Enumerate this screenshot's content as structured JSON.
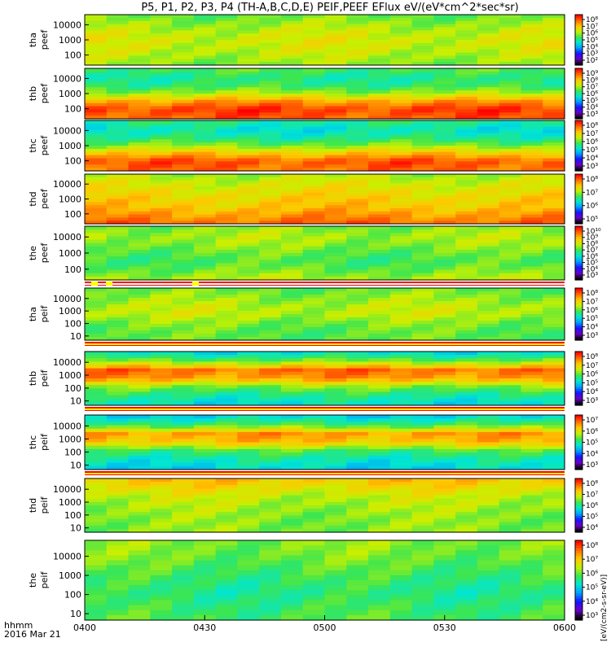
{
  "chart_data": {
    "type": "heatmap",
    "title": "P5, P1, P2, P3, P4 (TH-A,B,C,D,E) PEIF,PEEF EFlux eV/(eV*cm^2*sec*sr)",
    "x_label_left": "hhmm",
    "date_label": "2016 Mar 21",
    "x_ticks": [
      "0400",
      "0430",
      "0500",
      "0530",
      "0600"
    ],
    "colorbar_unit": "[eV/(cm2-s-sr-eV)]",
    "panels": [
      {
        "label": [
          "tha",
          "peef"
        ],
        "yticks": [
          "10000",
          "1000",
          "100"
        ],
        "cbar": [
          "10⁸",
          "10⁷",
          "10⁶",
          "10⁵",
          "10⁴",
          "10³",
          "10²"
        ],
        "profile": [
          5.3,
          5.7,
          6.0,
          6.2,
          6.1,
          5.9,
          5.6
        ],
        "stripe": false
      },
      {
        "label": [
          "thb",
          "peef"
        ],
        "yticks": [
          "10000",
          "1000",
          "100"
        ],
        "cbar": [
          "10⁹",
          "10⁸",
          "10⁷",
          "10⁶",
          "10⁵",
          "10⁴",
          "10³"
        ],
        "profile": [
          5.0,
          4.5,
          4.8,
          5.8,
          7.5,
          8.5,
          8.2
        ],
        "stripe": false
      },
      {
        "label": [
          "thc",
          "peef"
        ],
        "yticks": [
          "10000",
          "1000",
          "100"
        ],
        "cbar": [
          "10⁸",
          "10⁷",
          "10⁶",
          "10⁵",
          "10⁴",
          "10³"
        ],
        "profile": [
          4.5,
          4.0,
          4.5,
          5.5,
          7.0,
          8.3,
          8.0
        ],
        "stripe": false
      },
      {
        "label": [
          "thd",
          "peef"
        ],
        "yticks": [
          "10000",
          "1000",
          "100"
        ],
        "cbar": [
          "10⁸",
          "10⁷",
          "10⁶",
          "10⁵"
        ],
        "profile": [
          5.8,
          6.2,
          6.5,
          6.8,
          7.0,
          7.5,
          8.0
        ],
        "stripe": false
      },
      {
        "label": [
          "the",
          "peef"
        ],
        "yticks": [
          "10000",
          "1000",
          "100"
        ],
        "cbar": [
          "10¹⁰",
          "10⁹",
          "10⁸",
          "10⁷",
          "10⁶",
          "10⁵",
          "10⁴",
          "10³"
        ],
        "profile": [
          5.5,
          5.8,
          5.6,
          5.2,
          5.0,
          5.3,
          5.8
        ],
        "stripe": true
      },
      {
        "label": [
          "tha",
          "peif"
        ],
        "yticks": [
          "10000",
          "1000",
          "100",
          "10"
        ],
        "cbar": [
          "10⁸",
          "10⁷",
          "10⁶",
          "10⁵",
          "10⁴",
          "10³"
        ],
        "profile": [
          5.3,
          5.6,
          5.9,
          6.0,
          5.5,
          5.2,
          5.2
        ],
        "stripe": true
      },
      {
        "label": [
          "thb",
          "peif"
        ],
        "yticks": [
          "10000",
          "1000",
          "100",
          "10"
        ],
        "cbar": [
          "10⁸",
          "10⁷",
          "10⁶",
          "10⁵",
          "10⁴",
          "10³"
        ],
        "profile": [
          4.0,
          5.5,
          8.0,
          7.5,
          5.5,
          4.5,
          4.0
        ],
        "stripe": true
      },
      {
        "label": [
          "thc",
          "peif"
        ],
        "yticks": [
          "10000",
          "1000",
          "100",
          "10"
        ],
        "cbar": [
          "10⁷",
          "10⁶",
          "10⁵",
          "10⁴",
          "10³"
        ],
        "profile": [
          3.8,
          5.0,
          7.5,
          7.0,
          5.0,
          4.2,
          3.8
        ],
        "stripe": true
      },
      {
        "label": [
          "thd",
          "peif"
        ],
        "yticks": [
          "10000",
          "1000",
          "100",
          "10"
        ],
        "cbar": [
          "10⁸",
          "10⁷",
          "10⁶",
          "10⁵",
          "10⁴"
        ],
        "profile": [
          7.0,
          6.5,
          6.0,
          5.8,
          5.6,
          5.5,
          5.5
        ],
        "stripe": true
      },
      {
        "label": [
          "the",
          "peif"
        ],
        "yticks": [
          "10000",
          "1000",
          "100",
          "10"
        ],
        "cbar": [
          "10⁸",
          "10⁷",
          "10⁶",
          "10⁵",
          "10⁴",
          "10³"
        ],
        "profile": [
          5.5,
          5.4,
          5.1,
          4.8,
          4.6,
          4.8,
          5.0
        ],
        "stripe": false
      }
    ]
  }
}
